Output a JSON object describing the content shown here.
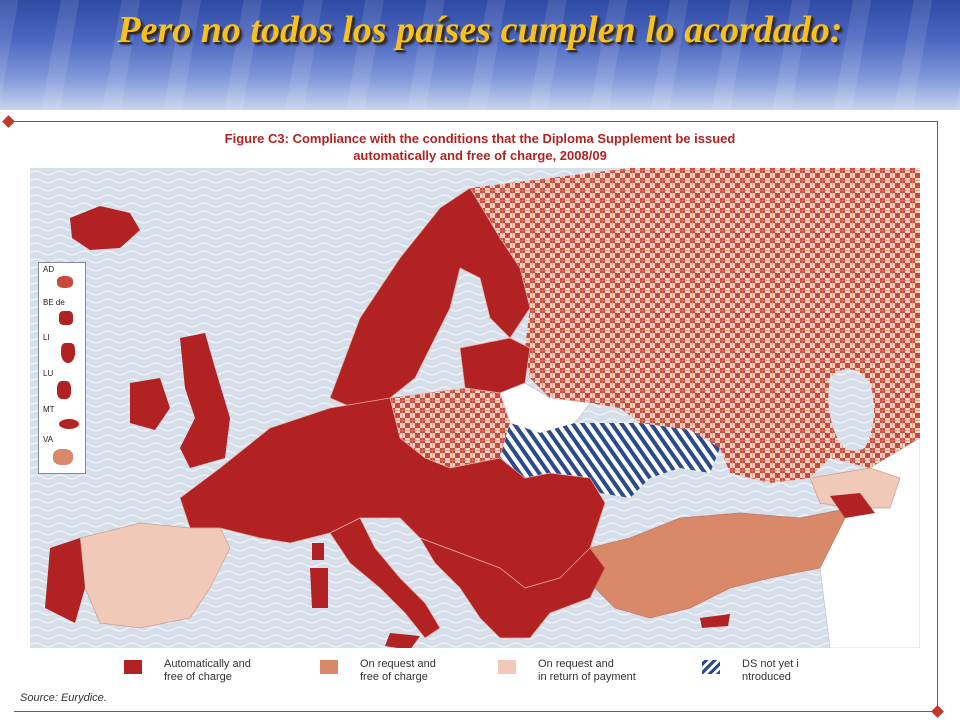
{
  "slide": {
    "title": "Pero no todos los países cumplen lo acordado:"
  },
  "figure": {
    "title_line1": "Figure C3: Compliance with the conditions that the Diploma Supplement be issued",
    "title_line2": "automatically and free of charge, 2008/09",
    "source": "Source: Eurydice."
  },
  "insets": [
    {
      "label": "AD"
    },
    {
      "label": "BE de"
    },
    {
      "label": "LI"
    },
    {
      "label": "LU"
    },
    {
      "label": "MT"
    },
    {
      "label": "VA"
    }
  ],
  "legend": [
    {
      "line1": "Automatically and",
      "line2": "free of charge",
      "color": "#b22222"
    },
    {
      "line1": "On request and",
      "line2": "free of charge",
      "color": "#d9896a"
    },
    {
      "line1": "On request and",
      "line2": "in return of payment",
      "color": "#f0c9b8"
    },
    {
      "line1": "DS not yet i",
      "line2": "ntroduced",
      "color": "#2a4a8a"
    }
  ],
  "colors": {
    "accent": "#c0392b",
    "auto_free": "#b22222",
    "request_free": "#d9896a",
    "request_payment": "#f0c9b8",
    "not_introduced": "#2a4a8a",
    "sea": "#d6deea"
  }
}
